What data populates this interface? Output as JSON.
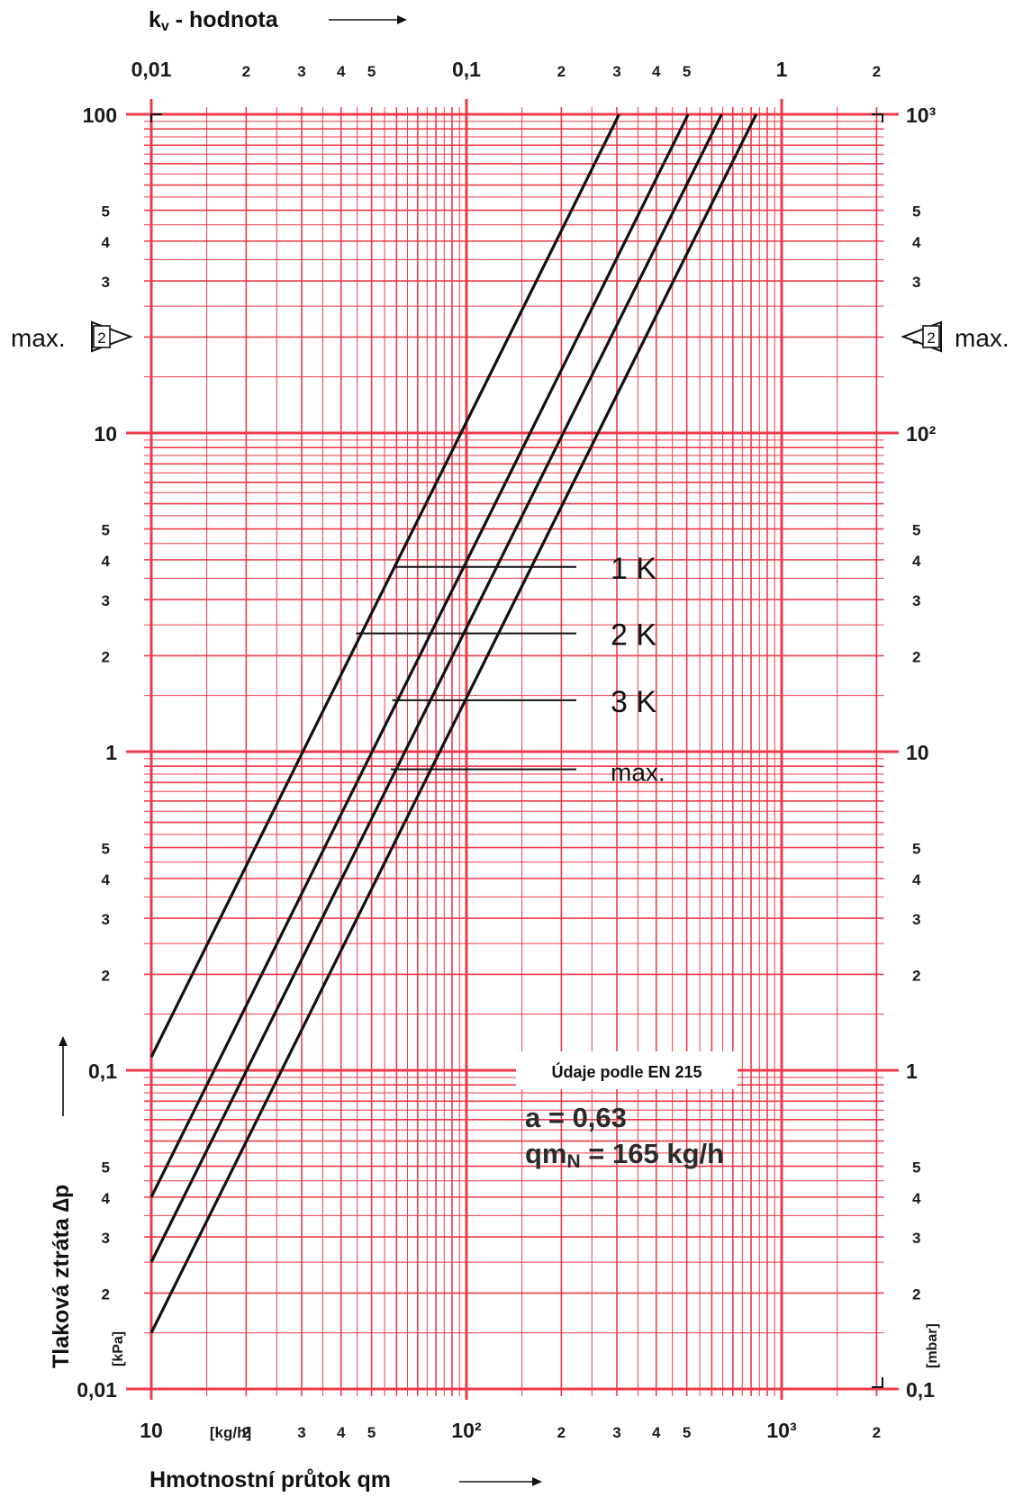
{
  "chart_data": {
    "type": "line",
    "scale": "log-log",
    "grid": true,
    "x_bottom": {
      "title": "Hmotnostní průtok qm",
      "unit": "[kg/h]",
      "range": [
        10,
        2000
      ],
      "decade_labels": [
        "10",
        "10²",
        "10³"
      ],
      "minor_labels": [
        "2",
        "3",
        "4",
        "5"
      ]
    },
    "x_top": {
      "title_main": "k",
      "title_sub": "v",
      "title_rest": " - hodnota",
      "range": [
        0.01,
        2
      ],
      "decade_labels": [
        "0,01",
        "0,1",
        "1"
      ],
      "minor_labels": [
        "2",
        "3",
        "4",
        "5"
      ]
    },
    "y_left": {
      "title": "Tlaková ztráta ∆p",
      "unit": "[kPa]",
      "range": [
        0.01,
        100
      ],
      "decade_labels": [
        "100",
        "10",
        "1",
        "0,1",
        "0,01"
      ],
      "minor_labels": [
        "5",
        "4",
        "3",
        "2"
      ]
    },
    "y_right": {
      "unit": "[mbar]",
      "range": [
        0.1,
        1000
      ],
      "decade_labels": [
        "10³",
        "10²",
        "10",
        "1",
        "0,1"
      ],
      "minor_labels": [
        "5",
        "4",
        "3",
        "2"
      ]
    },
    "max_marker": {
      "label": "max.",
      "symbol": "2",
      "y_kPa": 6
    },
    "series": [
      {
        "name": "1 K",
        "points": [
          [
            10,
            0.11
          ],
          [
            305,
            100
          ]
        ],
        "label_y_kPa": 3.8
      },
      {
        "name": "2 K",
        "points": [
          [
            10,
            0.04
          ],
          [
            505,
            100
          ]
        ],
        "label_y_kPa": 2.35
      },
      {
        "name": "3 K",
        "points": [
          [
            10,
            0.025
          ],
          [
            645,
            100
          ]
        ],
        "label_y_kPa": 1.45
      },
      {
        "name": "max.",
        "points": [
          [
            10,
            0.015
          ],
          [
            830,
            100
          ]
        ],
        "label_y_kPa": 0.88
      }
    ],
    "annotations": {
      "box_title": "Údaje podle EN 215",
      "line1": "a = 0,63",
      "line2_main": "qm",
      "line2_sub": "N",
      "line2_rest": " = 165 kg/h"
    }
  },
  "colors": {
    "grid": "#ee3b4b",
    "curve": "#111111",
    "background": "#ffffff"
  }
}
